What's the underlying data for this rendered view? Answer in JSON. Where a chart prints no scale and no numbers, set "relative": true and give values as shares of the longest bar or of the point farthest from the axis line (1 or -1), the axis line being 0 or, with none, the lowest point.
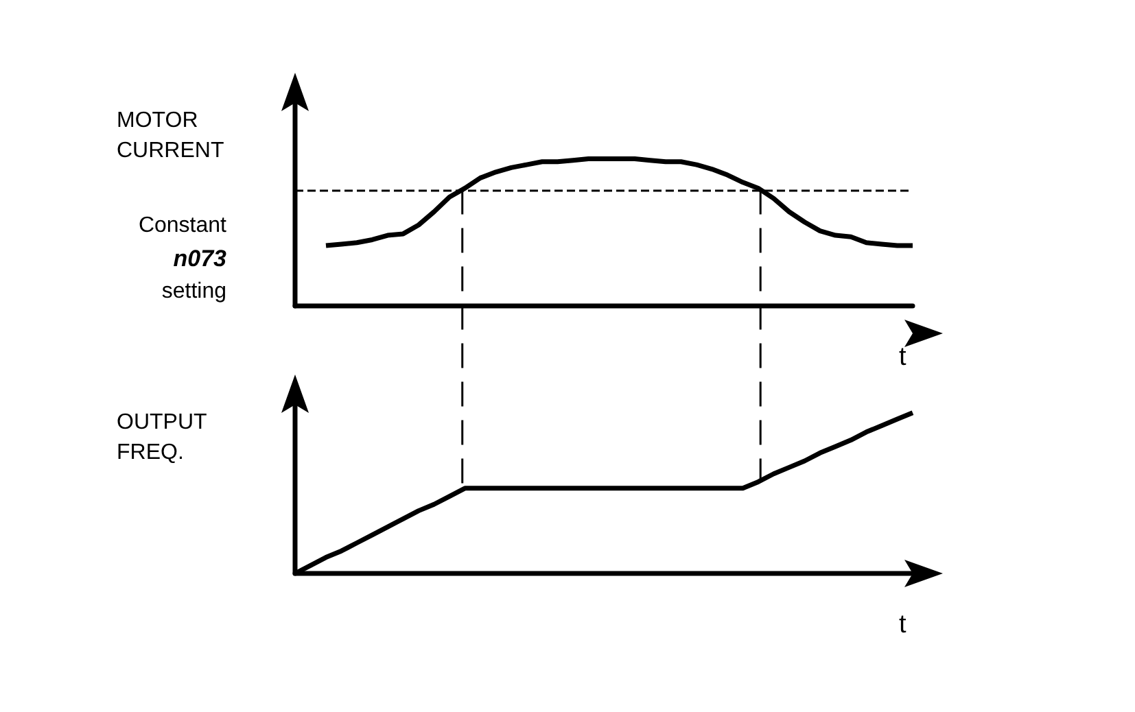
{
  "chart_data": [
    {
      "type": "line",
      "ylabel": "MOTOR CURRENT",
      "xlabel": "t",
      "relative": true,
      "grid": false,
      "marker": "none",
      "categories": [
        null,
        null,
        null,
        null,
        null,
        null,
        null,
        null,
        null,
        null,
        null,
        null,
        null,
        null,
        null,
        null,
        null,
        null,
        null,
        null,
        null,
        null,
        null,
        null,
        null,
        null,
        null,
        null,
        null,
        null,
        null,
        null,
        null,
        null,
        null,
        null,
        null,
        null,
        null,
        null,
        null
      ],
      "series": [
        {
          "color": "#000000",
          "values": [
            null,
            null,
            0.41,
            0.42,
            0.43,
            0.45,
            0.48,
            0.49,
            0.55,
            0.64,
            0.74,
            0.8,
            0.87,
            0.91,
            0.94,
            0.96,
            0.98,
            0.98,
            0.99,
            1.0,
            1.0,
            1.0,
            1.0,
            0.99,
            0.98,
            0.98,
            0.96,
            0.93,
            0.89,
            0.84,
            0.8,
            0.73,
            0.64,
            0.57,
            0.51,
            0.48,
            0.47,
            0.43,
            0.42,
            0.41,
            0.41
          ]
        }
      ],
      "ref_lines": [
        {
          "axis": "y",
          "value": 0.79,
          "label": "Constant n073 setting",
          "line_style": "dashed",
          "color": "#000000"
        }
      ]
    },
    {
      "type": "line",
      "ylabel": "OUTPUT FREQ.",
      "xlabel": "t",
      "relative": true,
      "grid": false,
      "marker": "none",
      "categories": [
        null,
        null,
        null,
        null,
        null,
        null,
        null,
        null,
        null,
        null,
        null,
        null,
        null,
        null,
        null,
        null,
        null,
        null,
        null,
        null,
        null,
        null,
        null,
        null,
        null,
        null,
        null,
        null,
        null,
        null,
        null,
        null,
        null,
        null,
        null,
        null,
        null,
        null,
        null,
        null,
        null
      ],
      "series": [
        {
          "color": "#000000",
          "values": [
            0,
            0.05,
            0.1,
            0.14,
            0.19,
            0.24,
            0.29,
            0.34,
            0.39,
            0.43,
            0.48,
            0.53,
            0.53,
            0.53,
            0.53,
            0.53,
            0.53,
            0.53,
            0.53,
            0.53,
            0.53,
            0.53,
            0.53,
            0.53,
            0.53,
            0.53,
            0.53,
            0.53,
            0.53,
            0.53,
            0.57,
            0.62,
            0.66,
            0.7,
            0.75,
            0.79,
            0.83,
            0.88,
            0.92,
            0.96,
            1.0
          ]
        }
      ]
    }
  ]
}
